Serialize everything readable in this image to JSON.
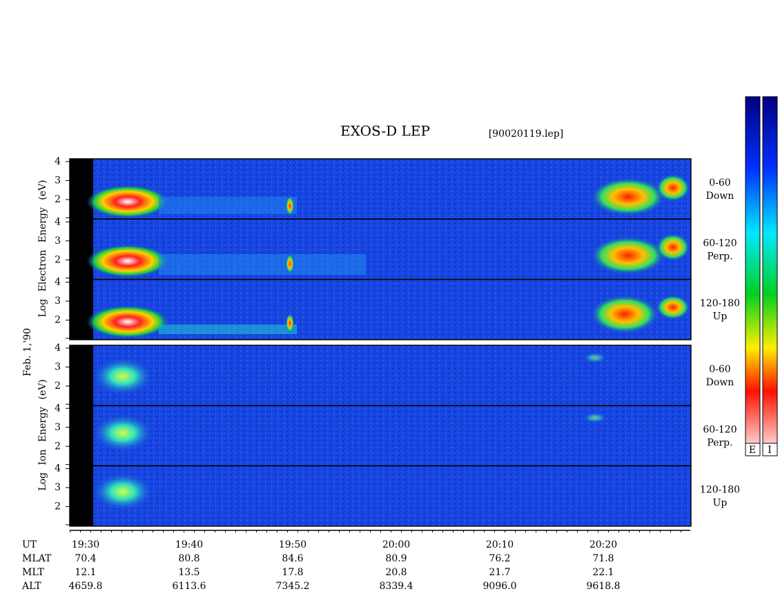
{
  "title": "EXOS-D LEP",
  "file": "[90020119.lep]",
  "date_label": "Feb. 1,'90",
  "groups": [
    {
      "label": "Log   Electron   Energy (eV)",
      "panels": [
        {
          "range": "0-60",
          "direction": "Down"
        },
        {
          "range": "60-120",
          "direction": "Perp."
        },
        {
          "range": "120-180",
          "direction": "Up"
        }
      ]
    },
    {
      "label": "Log   Ion   Energy (eV)",
      "panels": [
        {
          "range": "0-60",
          "direction": "Down"
        },
        {
          "range": "60-120",
          "direction": "Perp."
        },
        {
          "range": "120-180",
          "direction": "Up"
        }
      ]
    }
  ],
  "yticks": [
    2,
    3,
    4
  ],
  "colorbar_labels": [
    "E",
    "I"
  ],
  "rows": [
    {
      "name": "UT",
      "values": [
        "19:30",
        "19:40",
        "19:50",
        "20:00",
        "20:10",
        "20:20"
      ]
    },
    {
      "name": "MLAT",
      "values": [
        "70.4",
        "80.8",
        "84.6",
        "80.9",
        "76.2",
        "71.8"
      ]
    },
    {
      "name": "MLT",
      "values": [
        "12.1",
        "13.5",
        "17.8",
        "20.8",
        "21.7",
        "22.1"
      ]
    },
    {
      "name": "ALT",
      "values": [
        "4659.8",
        "6113.6",
        "7345.2",
        "8339.4",
        "9096.0",
        "9618.8"
      ]
    }
  ]
}
